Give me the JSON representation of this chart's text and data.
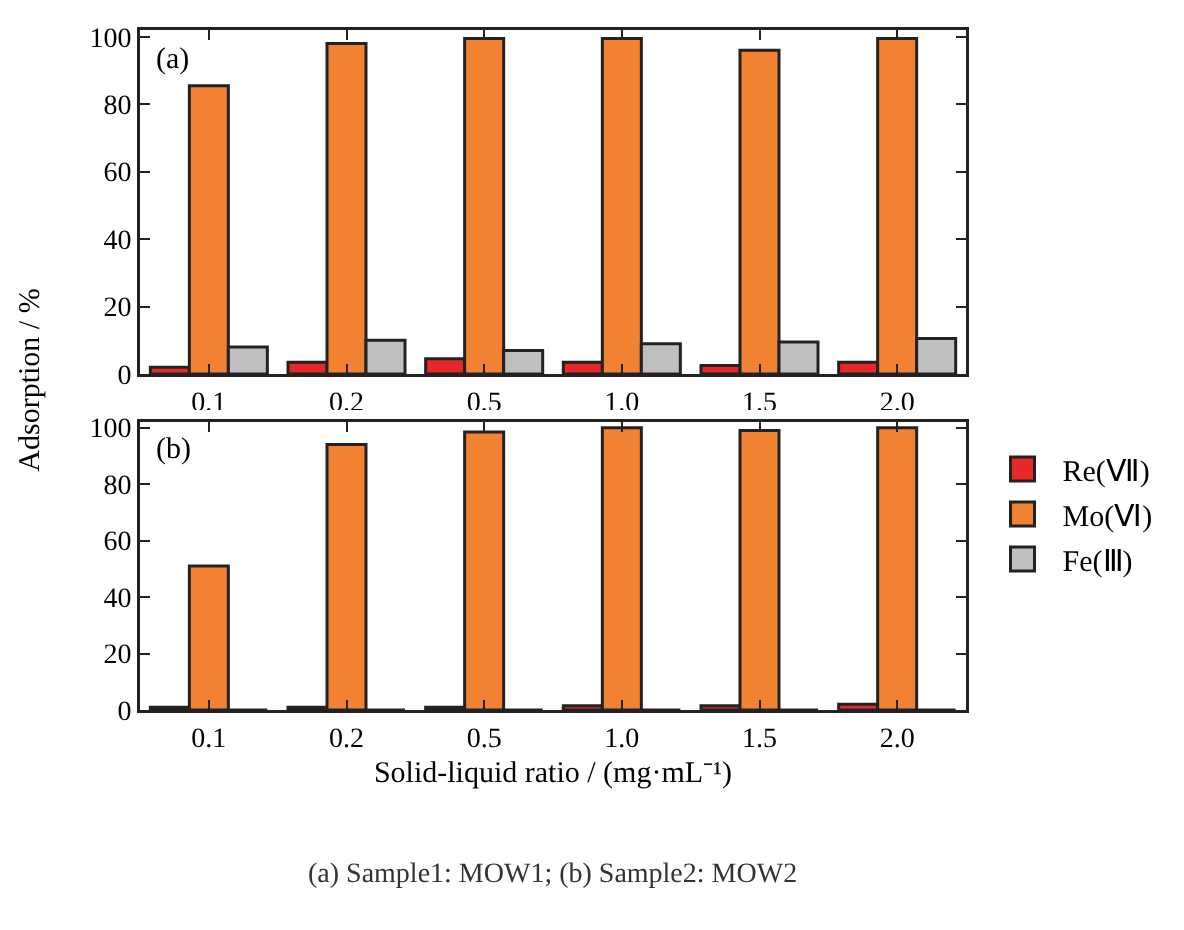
{
  "chart_data": [
    {
      "type": "bar",
      "annotations": [
        "(a)"
      ],
      "ylabel": "Adsorption / %",
      "categories": [
        "0.1",
        "0.2",
        "0.5",
        "1.0",
        "1.5",
        "2.0"
      ],
      "ylim": [
        0,
        102
      ],
      "yticks": [
        0,
        20,
        40,
        60,
        80,
        100
      ],
      "grid": false,
      "legend": false,
      "series": [
        {
          "color": "#e8272a",
          "values": [
            2,
            3.5,
            4.5,
            3.5,
            2.5,
            3.5
          ]
        },
        {
          "color": "#f08232",
          "values": [
            85.5,
            98,
            99.5,
            99.5,
            96,
            99.5
          ]
        },
        {
          "color": "#bfbfbf",
          "values": [
            8,
            10,
            7,
            9,
            9.5,
            10.5
          ]
        }
      ]
    },
    {
      "type": "bar",
      "annotations": [
        "(b)",
        "(a) Sample1: MOW1; (b) Sample2: MOW2"
      ],
      "xlabel": "Solid-liquid ratio / (mg·mL⁻¹)",
      "categories": [
        "0.1",
        "0.2",
        "0.5",
        "1.0",
        "1.5",
        "2.0"
      ],
      "ylim": [
        0,
        102
      ],
      "yticks": [
        0,
        20,
        40,
        60,
        80,
        100
      ],
      "grid": false,
      "legend": "right",
      "series": [
        {
          "name": "Re(Ⅶ)",
          "color": "#e8272a",
          "values": [
            1,
            1,
            1,
            1.5,
            1.5,
            2
          ]
        },
        {
          "name": "Mo(Ⅵ)",
          "color": "#f08232",
          "values": [
            51,
            94,
            98.5,
            100,
            99,
            100
          ]
        },
        {
          "name": "Fe(Ⅲ)",
          "color": "#bfbfbf",
          "values": [
            0,
            0,
            0,
            0,
            0,
            0
          ]
        }
      ]
    }
  ]
}
